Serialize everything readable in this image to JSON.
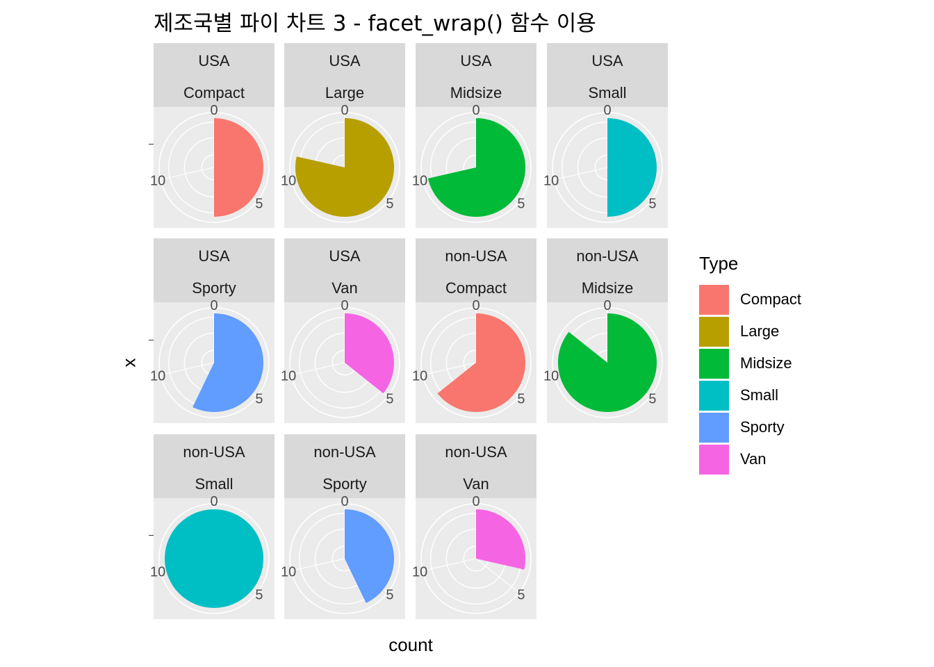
{
  "chart_data": {
    "type": "pie",
    "title": "제조국별 파이 차트 3 - facet_wrap() 함수 이용",
    "xlabel": "count",
    "ylabel": "x",
    "theta_ticks": [
      "0",
      "5",
      "10"
    ],
    "theta_range": [
      0,
      14
    ],
    "legend": {
      "title": "Type",
      "position": "right",
      "entries": [
        {
          "name": "Compact",
          "color": "#F8766D"
        },
        {
          "name": "Large",
          "color": "#B79F00"
        },
        {
          "name": "Midsize",
          "color": "#00BA38"
        },
        {
          "name": "Small",
          "color": "#00BFC4"
        },
        {
          "name": "Sporty",
          "color": "#619CFF"
        },
        {
          "name": "Van",
          "color": "#F564E3"
        }
      ]
    },
    "panels": [
      {
        "origin": "USA",
        "type": "Compact",
        "count": 7
      },
      {
        "origin": "USA",
        "type": "Large",
        "count": 11
      },
      {
        "origin": "USA",
        "type": "Midsize",
        "count": 10
      },
      {
        "origin": "USA",
        "type": "Small",
        "count": 7
      },
      {
        "origin": "USA",
        "type": "Sporty",
        "count": 8
      },
      {
        "origin": "USA",
        "type": "Van",
        "count": 5
      },
      {
        "origin": "non-USA",
        "type": "Compact",
        "count": 9
      },
      {
        "origin": "non-USA",
        "type": "Midsize",
        "count": 12
      },
      {
        "origin": "non-USA",
        "type": "Small",
        "count": 14
      },
      {
        "origin": "non-USA",
        "type": "Sporty",
        "count": 6
      },
      {
        "origin": "non-USA",
        "type": "Van",
        "count": 4
      }
    ]
  }
}
